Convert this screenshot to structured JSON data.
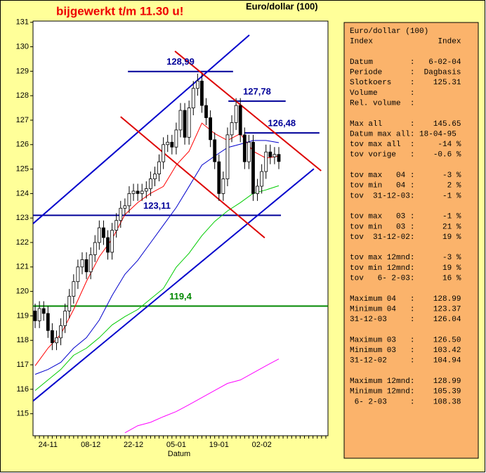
{
  "chart_data": {
    "type": "candlestick",
    "title": "Euro/dollar (100)",
    "subtitle": "bijgewerkt t/m 11.30 u!",
    "x_label": "Datum",
    "categories": [
      null,
      null,
      null,
      "24-11",
      null,
      null,
      null,
      null,
      null,
      null,
      null,
      null,
      null,
      "08-12",
      null,
      null,
      null,
      null,
      null,
      null,
      null,
      null,
      null,
      "22-12",
      null,
      null,
      null,
      null,
      null,
      null,
      null,
      null,
      null,
      "05-01",
      null,
      null,
      null,
      null,
      null,
      null,
      null,
      null,
      null,
      "19-01",
      null,
      null,
      null,
      null,
      null,
      null,
      null,
      null,
      null,
      "02-02",
      null,
      null,
      null,
      null
    ],
    "xlim": [
      -0.5,
      68.5
    ],
    "ylim": [
      114.1,
      131.05
    ],
    "yticks": [
      115,
      116,
      117,
      118,
      119,
      120,
      121,
      122,
      123,
      124,
      125,
      126,
      127,
      128,
      129,
      130,
      131
    ],
    "candle_colors": {
      "up": "#ffffff",
      "down": "#000000"
    },
    "open": [
      119.2,
      118.8,
      119.3,
      119.1,
      118.4,
      117.9,
      118.1,
      118.6,
      119.2,
      119.8,
      120.4,
      121.0,
      121.3,
      120.8,
      121.5,
      122.0,
      122.6,
      122.2,
      121.6,
      122.5,
      122.9,
      123.4,
      123.5,
      124.0,
      124.1,
      124.0,
      124.1,
      124.2,
      124.6,
      124.8,
      125.3,
      126.0,
      126.1,
      125.9,
      126.6,
      127.4,
      126.3,
      127.5,
      128.3,
      128.6,
      127.6,
      127.1,
      126.2,
      125.3,
      124.0,
      124.6,
      126.4,
      126.9,
      127.6,
      126.4,
      125.3,
      126.1,
      124.0,
      124.3,
      124.9,
      125.7,
      125.5,
      125.6
    ],
    "high": [
      119.5,
      119.6,
      119.6,
      119.4,
      118.7,
      118.4,
      118.9,
      119.5,
      120.1,
      120.7,
      121.3,
      121.6,
      121.6,
      121.8,
      122.3,
      122.9,
      122.9,
      122.5,
      122.8,
      123.2,
      123.7,
      123.8,
      124.3,
      124.4,
      124.4,
      124.4,
      124.5,
      124.9,
      125.1,
      125.6,
      126.3,
      126.4,
      126.4,
      126.9,
      127.7,
      127.7,
      127.8,
      128.6,
      128.9,
      128.9,
      127.9,
      127.4,
      126.5,
      125.6,
      124.9,
      126.7,
      127.2,
      127.9,
      127.9,
      126.7,
      126.4,
      126.4,
      124.6,
      125.2,
      126.0,
      126.0,
      125.9,
      125.9
    ],
    "low": [
      118.5,
      118.5,
      118.8,
      118.1,
      117.6,
      117.6,
      117.8,
      118.3,
      118.9,
      119.5,
      120.1,
      120.7,
      120.5,
      120.5,
      121.2,
      121.7,
      121.9,
      121.3,
      121.3,
      122.2,
      122.6,
      123.1,
      123.2,
      123.7,
      123.7,
      123.7,
      123.8,
      123.9,
      124.3,
      124.5,
      125.0,
      125.7,
      125.6,
      125.6,
      126.3,
      126.0,
      126.0,
      127.2,
      128.0,
      127.3,
      126.8,
      125.9,
      125.0,
      123.7,
      123.7,
      124.3,
      126.1,
      126.6,
      126.1,
      125.0,
      125.0,
      123.7,
      123.7,
      124.0,
      124.6,
      125.2,
      125.2,
      125.0
    ],
    "close": [
      118.8,
      119.3,
      119.1,
      118.4,
      117.9,
      118.1,
      118.6,
      119.2,
      119.8,
      120.4,
      121.0,
      121.3,
      120.8,
      121.5,
      122.0,
      122.6,
      122.2,
      121.6,
      122.5,
      122.9,
      123.4,
      123.5,
      124.0,
      124.1,
      124.0,
      124.1,
      124.2,
      124.6,
      124.8,
      125.3,
      126.0,
      126.1,
      125.9,
      126.6,
      127.4,
      126.3,
      127.5,
      128.3,
      128.6,
      127.6,
      127.1,
      126.2,
      125.3,
      124.0,
      124.6,
      126.4,
      126.9,
      127.6,
      126.4,
      125.3,
      126.1,
      124.0,
      124.3,
      124.9,
      125.7,
      125.5,
      125.6,
      125.31
    ],
    "averages": [
      {
        "color": "#ff0000",
        "x": [
          0,
          3,
          6,
          9,
          12,
          15,
          18,
          21,
          24,
          27,
          30,
          33,
          36,
          39,
          42,
          45,
          48,
          51,
          54,
          57
        ],
        "values": [
          116.96,
          117.68,
          118.25,
          119.26,
          120.41,
          121.42,
          122.14,
          123.14,
          123.63,
          124.01,
          124.29,
          125.16,
          125.73,
          126.88,
          126.45,
          126.17,
          126.45,
          125.73,
          125.45,
          125.53
        ]
      },
      {
        "color": "#0000cc",
        "x": [
          0,
          3,
          6,
          9,
          12,
          15,
          18,
          21,
          24,
          27,
          30,
          33,
          36,
          39,
          42,
          45,
          48,
          51,
          54,
          57
        ],
        "values": [
          116.61,
          116.81,
          117.1,
          117.68,
          118.11,
          118.83,
          119.83,
          120.7,
          121.27,
          121.99,
          122.71,
          123.43,
          124.29,
          125.16,
          125.53,
          125.88,
          126.02,
          126.17,
          126.17,
          126.08
        ]
      },
      {
        "color": "#00cc00",
        "x": [
          0,
          3,
          6,
          9,
          12,
          15,
          18,
          21,
          24,
          27,
          30,
          33,
          36,
          39,
          42,
          45,
          48,
          51,
          54,
          57
        ],
        "values": [
          115.95,
          116.38,
          116.81,
          117.39,
          117.68,
          118.11,
          118.63,
          118.97,
          119.26,
          119.69,
          120.12,
          120.99,
          121.56,
          122.28,
          122.86,
          123.29,
          123.63,
          124.01,
          124.15,
          124.32
        ]
      },
      {
        "color": "#ff00ff",
        "x": [
          0,
          3,
          6,
          9,
          12,
          15,
          18,
          21,
          24,
          27,
          30,
          33,
          36,
          39,
          42,
          45,
          48,
          51,
          54,
          57
        ],
        "values": [
          null,
          null,
          null,
          null,
          null,
          null,
          null,
          114.22,
          114.51,
          114.65,
          114.88,
          115.09,
          115.37,
          115.66,
          115.95,
          116.24,
          116.38,
          116.67,
          116.96,
          117.24
        ]
      }
    ],
    "trend_lines": [
      {
        "color": "#0000cc",
        "x": [
          -0.5,
          50.1
        ],
        "y": [
          122.77,
          130.48
        ]
      },
      {
        "color": "#0000cc",
        "x": [
          -0.5,
          65.2
        ],
        "y": [
          115.52,
          125.01
        ]
      },
      {
        "color": "#dd0000",
        "x": [
          32.7,
          66.9
        ],
        "y": [
          129.82,
          124.93
        ]
      },
      {
        "color": "#dd0000",
        "x": [
          20.0,
          53.7
        ],
        "y": [
          127.14,
          122.19
        ]
      }
    ],
    "levels": [
      {
        "value": 128.99,
        "label": "128,99",
        "color": "#000099",
        "x": [
          21.7,
          46.3
        ]
      },
      {
        "value": 127.78,
        "label": "127,78",
        "color": "#000099",
        "x": [
          45.2,
          58.6
        ]
      },
      {
        "value": 126.48,
        "label": "126,48",
        "color": "#000099",
        "x": [
          48.9,
          66.5
        ]
      },
      {
        "value": 123.11,
        "label": "123,11",
        "color": "#000099",
        "x": [
          -0.5,
          57.5
        ]
      },
      {
        "value": 119.4,
        "label": "119,4",
        "color": "#008800",
        "x": [
          -0.5,
          68.5
        ]
      }
    ]
  },
  "info_panel": {
    "groups": [
      [
        "Euro/dollar (100)",
        "Index              Index"
      ],
      [
        "Datum        :   6-02-04",
        "Periode      :  Dagbasis",
        "Slotkoers    :    125.31",
        "Volume       :",
        "Rel. volume  :"
      ],
      [
        "Max all      :    145.65",
        "Datum max all: 18-04-95",
        "tov max all  :     -14 %",
        "tov vorige   :    -0.6 %"
      ],
      [
        "tov max   04 :      -3 %",
        "tov min   04 :       2 %",
        "tov  31-12-03:      -1 %"
      ],
      [
        "tov max   03 :      -1 %",
        "tov min   03 :      21 %",
        "tov  31-12-02:      19 %"
      ],
      [
        "tov max 12mnd:      -3 %",
        "tov min 12mnd:      19 %",
        "tov   6- 2-03:      16 %"
      ],
      [
        "Maximum 04   :    128.99",
        "Minimum 04   :    123.37",
        "31-12-03     :    126.04"
      ],
      [
        "Maximum 03   :    126.50",
        "Minimum 03   :    103.42",
        "31-12-02     :    104.94"
      ],
      [
        "Maximum 12mnd:    128.99",
        "Minimum 12mnd:    105.39",
        " 6- 2-03     :    108.38"
      ]
    ]
  }
}
